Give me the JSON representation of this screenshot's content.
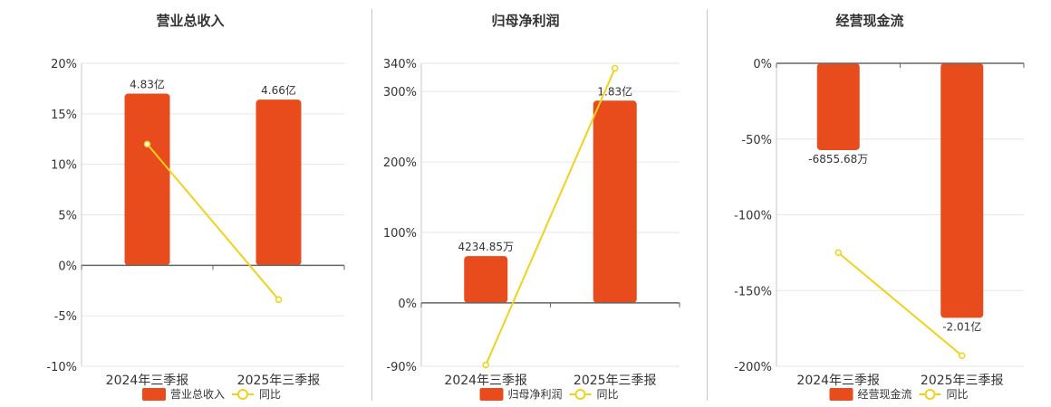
{
  "colors": {
    "bar": "#e84c1c",
    "line": "#f0d21c",
    "grid": "#e6e6e6",
    "axis": "#666666",
    "text": "#333333"
  },
  "chart_data": [
    {
      "type": "bar",
      "title": "营业总收入",
      "categories": [
        "2024年三季报",
        "2025年三季报"
      ],
      "bar_axis": "left",
      "series": [
        {
          "name": "营业总收入",
          "kind": "bar",
          "values": [
            4.83,
            4.66
          ],
          "labels": [
            "4.83亿",
            "4.66亿"
          ]
        },
        {
          "name": "同比",
          "kind": "line",
          "values": [
            12.0,
            -3.4
          ]
        }
      ],
      "yaxis": {
        "min": -10,
        "max": 20,
        "ticks": [
          20,
          15,
          10,
          5,
          0,
          -5,
          -10
        ],
        "tick_labels": [
          "20%",
          "15%",
          "10%",
          "5%",
          "0%",
          "-5%",
          "-10%"
        ]
      },
      "bar_scale_max": 4.83,
      "bar_scale_top": 17.0
    },
    {
      "type": "bar",
      "title": "归母净利润",
      "categories": [
        "2024年三季报",
        "2025年三季报"
      ],
      "series": [
        {
          "name": "归母净利润",
          "kind": "bar",
          "values": [
            0.4234853,
            1.83
          ],
          "labels": [
            "4234.85万",
            "1.83亿"
          ]
        },
        {
          "name": "同比",
          "kind": "line",
          "values": [
            -88,
            333
          ]
        }
      ],
      "yaxis": {
        "min": -90,
        "max": 340,
        "ticks": [
          340,
          300,
          200,
          100,
          0,
          -90
        ],
        "tick_labels": [
          "340%",
          "300%",
          "200%",
          "100%",
          "0%",
          "-90%"
        ]
      },
      "bar_scale_max": 1.83,
      "bar_scale_top": 287
    },
    {
      "type": "bar",
      "title": "经营现金流",
      "categories": [
        "2024年三季报",
        "2025年三季报"
      ],
      "series": [
        {
          "name": "经营现金流",
          "kind": "bar",
          "values": [
            -0.685568,
            -2.01
          ],
          "labels": [
            "-6855.68万",
            "-2.01亿"
          ]
        },
        {
          "name": "同比",
          "kind": "line",
          "values": [
            -125,
            -193
          ]
        }
      ],
      "yaxis": {
        "min": -200,
        "max": 0,
        "ticks": [
          0,
          -50,
          -100,
          -150,
          -200
        ],
        "tick_labels": [
          "0%",
          "-50%",
          "-100%",
          "-150%",
          "-200%"
        ]
      },
      "bar_scale_max": -2.01,
      "bar_scale_top": -168
    }
  ]
}
